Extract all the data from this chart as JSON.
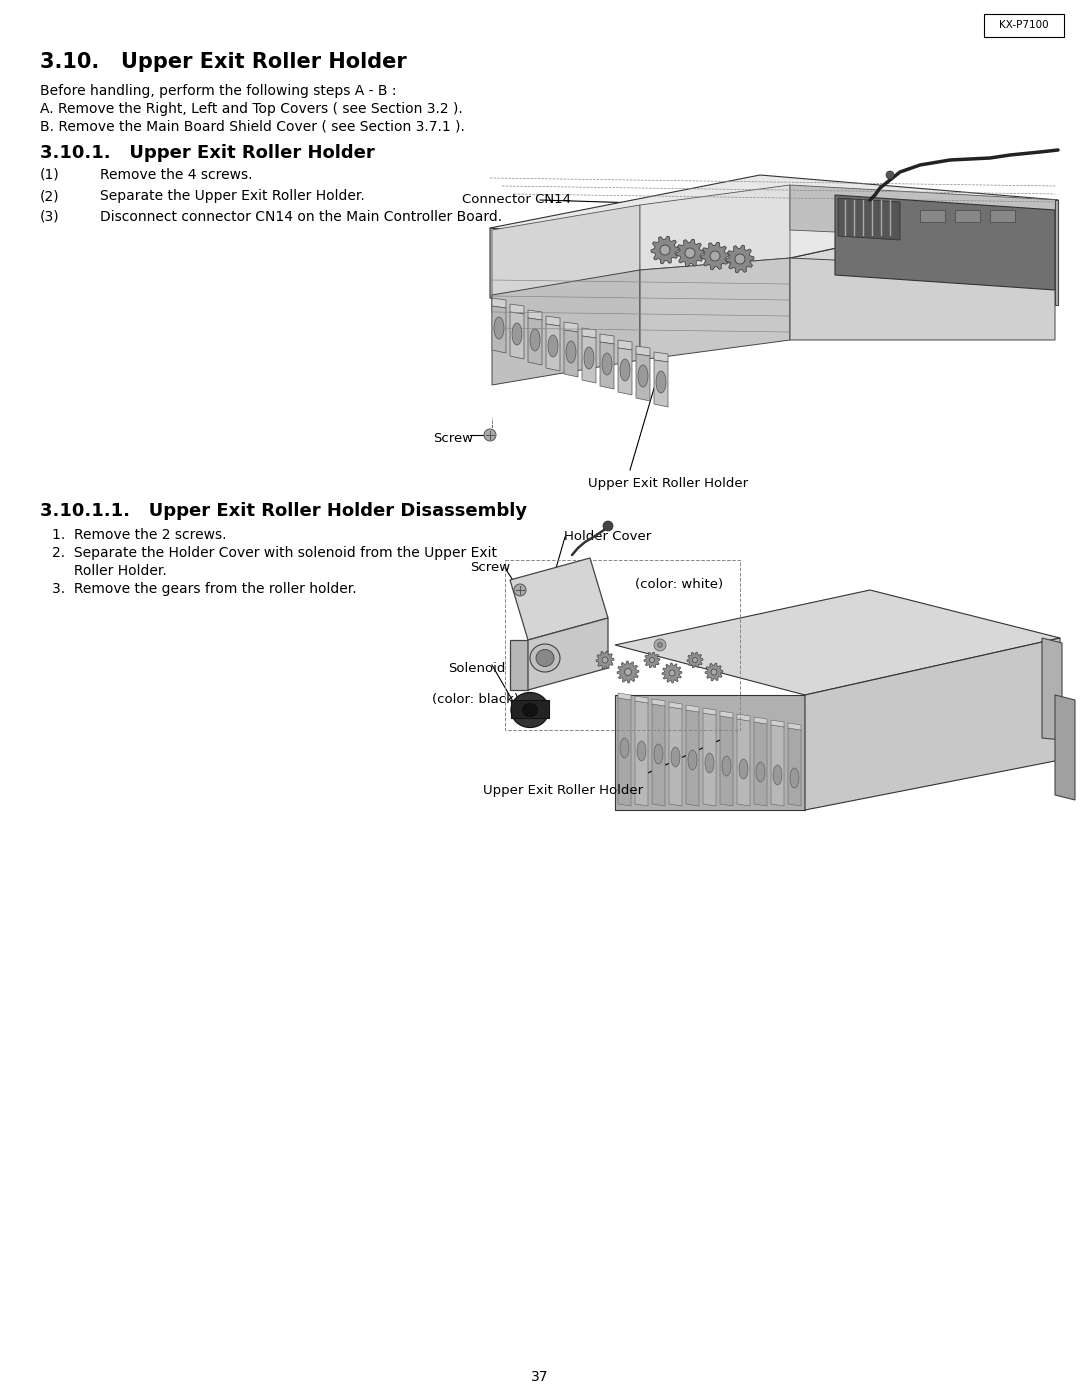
{
  "page_num": "37",
  "model": "KX-P7100",
  "bg_color": "#ffffff",
  "s310_title": "3.10.   Upper Exit Roller Holder",
  "intro": [
    "Before handling, perform the following steps A - B :",
    "A. Remove the Right, Left and Top Covers ( see Section 3.2 ).",
    "B. Remove the Main Board Shield Cover ( see Section 3.7.1 )."
  ],
  "s3101_title": "3.10.1.   Upper Exit Roller Holder",
  "s3101_steps": [
    [
      "(1)",
      "Remove the 4 screws."
    ],
    [
      "(2)",
      "Separate the Upper Exit Roller Holder."
    ],
    [
      "(3)",
      "Disconnect connector CN14 on the Main Controller Board."
    ]
  ],
  "lbl_cn14": "Connector CN14",
  "lbl_screw1": "Screw",
  "lbl_uerh1": "Upper Exit Roller Holder",
  "s31011_title": "3.10.1.1.   Upper Exit Roller Holder Disassembly",
  "s31011_steps": [
    "1. Remove the 2 screws.",
    "2. Separate the Holder Cover with solenoid from the Upper Exit\n   Roller Holder.",
    "3. Remove the gears from the roller holder."
  ],
  "lbl_hc": "Holder Cover",
  "lbl_screw2": "Screw",
  "lbl_white": "(color: white)",
  "lbl_solenoid": "Solenoid",
  "lbl_black": "(color: black)",
  "lbl_uerh2": "Upper Exit Roller Holder",
  "title_fs": 15,
  "sub1_fs": 13,
  "sub2_fs": 13,
  "body_fs": 10,
  "step_fs": 10,
  "lbl_fs": 9.5
}
